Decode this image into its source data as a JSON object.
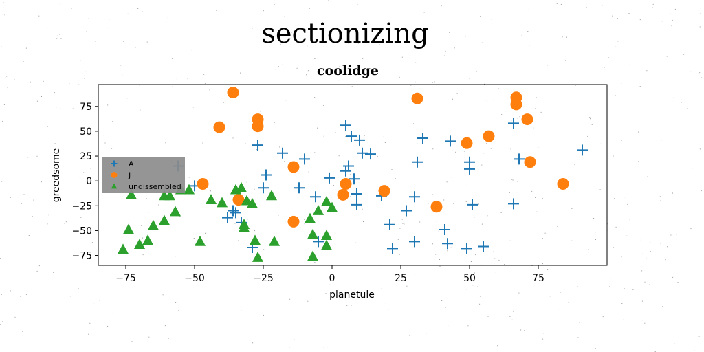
{
  "figure": {
    "suptitle": "sectionizing"
  },
  "chart_data": {
    "type": "scatter",
    "title": "coolidge",
    "xlabel": "planetule",
    "ylabel": "greedsome",
    "xlim": [
      -85,
      100
    ],
    "ylim": [
      -85,
      97
    ],
    "xticks": [
      -75,
      -50,
      -25,
      0,
      25,
      50,
      75
    ],
    "yticks": [
      -75,
      -50,
      -25,
      0,
      25,
      50,
      75
    ],
    "grid": false,
    "legend_position": "center-left",
    "series": [
      {
        "name": "A",
        "marker": "plus",
        "color": "#1f77b4",
        "points": [
          [
            -56,
            15
          ],
          [
            -50,
            -5
          ],
          [
            -38,
            -37
          ],
          [
            -36,
            -30
          ],
          [
            -35,
            -32
          ],
          [
            -33,
            -42
          ],
          [
            -29,
            -67
          ],
          [
            -27,
            36
          ],
          [
            -25,
            -7
          ],
          [
            -24,
            6
          ],
          [
            -18,
            28
          ],
          [
            -12,
            -7
          ],
          [
            -10,
            22
          ],
          [
            -6,
            -16
          ],
          [
            -5,
            -61
          ],
          [
            -1,
            3
          ],
          [
            5,
            56
          ],
          [
            5,
            10
          ],
          [
            6,
            15
          ],
          [
            7,
            45
          ],
          [
            8,
            2
          ],
          [
            9,
            -13
          ],
          [
            9,
            -24
          ],
          [
            10,
            41
          ],
          [
            11,
            28
          ],
          [
            14,
            27
          ],
          [
            18,
            -15
          ],
          [
            21,
            -44
          ],
          [
            22,
            -68
          ],
          [
            27,
            -30
          ],
          [
            30,
            -61
          ],
          [
            30,
            -16
          ],
          [
            31,
            19
          ],
          [
            33,
            43
          ],
          [
            41,
            -49
          ],
          [
            42,
            -63
          ],
          [
            43,
            40
          ],
          [
            49,
            -68
          ],
          [
            50,
            12
          ],
          [
            50,
            19
          ],
          [
            51,
            -24
          ],
          [
            55,
            -66
          ],
          [
            66,
            58
          ],
          [
            66,
            -23
          ],
          [
            68,
            22
          ],
          [
            91,
            31
          ]
        ]
      },
      {
        "name": "J",
        "marker": "circle",
        "color": "#ff7f0e",
        "points": [
          [
            -47,
            -3
          ],
          [
            -41,
            54
          ],
          [
            -36,
            89
          ],
          [
            -34,
            -19
          ],
          [
            -27,
            62
          ],
          [
            -27,
            55
          ],
          [
            -14,
            14
          ],
          [
            -14,
            -41
          ],
          [
            4,
            -14
          ],
          [
            5,
            -3
          ],
          [
            19,
            -10
          ],
          [
            31,
            83
          ],
          [
            38,
            -26
          ],
          [
            49,
            38
          ],
          [
            57,
            45
          ],
          [
            67,
            84
          ],
          [
            67,
            77
          ],
          [
            71,
            62
          ],
          [
            72,
            19
          ],
          [
            84,
            -3
          ]
        ]
      },
      {
        "name": "undissembled",
        "marker": "triangle",
        "color": "#2ca02c",
        "points": [
          [
            -76,
            -69
          ],
          [
            -74,
            -49
          ],
          [
            -73,
            -14
          ],
          [
            -70,
            -64
          ],
          [
            -67,
            -60
          ],
          [
            -65,
            -45
          ],
          [
            -61,
            -40
          ],
          [
            -61,
            -15
          ],
          [
            -59,
            -15
          ],
          [
            -57,
            -31
          ],
          [
            -55,
            -9
          ],
          [
            -52,
            -9
          ],
          [
            -48,
            -61
          ],
          [
            -44,
            -19
          ],
          [
            -40,
            -22
          ],
          [
            -35,
            -9
          ],
          [
            -33,
            -7
          ],
          [
            -32,
            -44
          ],
          [
            -32,
            -47
          ],
          [
            -31,
            -20
          ],
          [
            -29,
            -23
          ],
          [
            -28,
            -60
          ],
          [
            -27,
            -77
          ],
          [
            -22,
            -15
          ],
          [
            -21,
            -61
          ],
          [
            -8,
            -38
          ],
          [
            -7,
            -54
          ],
          [
            -7,
            -76
          ],
          [
            -5,
            -30
          ],
          [
            -2,
            -21
          ],
          [
            -2,
            -55
          ],
          [
            -2,
            -65
          ],
          [
            0,
            -27
          ]
        ]
      }
    ]
  }
}
